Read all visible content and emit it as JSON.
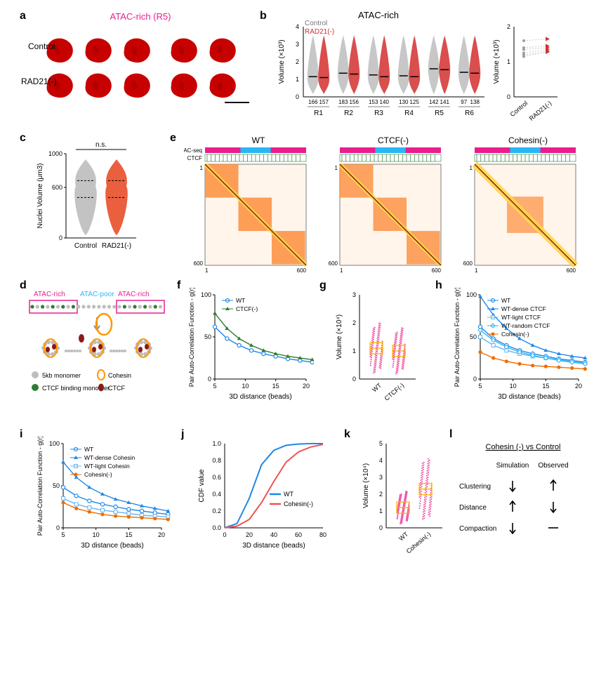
{
  "panels": {
    "a": {
      "label": "a",
      "title": "ATAC-rich (R5)",
      "title_color": "#e91e8c",
      "rows": [
        "Control",
        "RAD21(-)"
      ],
      "blob_color": "#c70000",
      "blob_count": 5,
      "bg": "#ffffff",
      "title_fontsize": 13,
      "row_label_fontsize": 12
    },
    "b": {
      "label": "b",
      "title": "ATAC-rich",
      "title_fontsize": 13,
      "legend": [
        {
          "text": "Control",
          "color": "#9e9e9e"
        },
        {
          "text": "RAD21(-)",
          "color": "#d32f2f"
        }
      ],
      "ylabel": "Volume (×10³)",
      "ylim": [
        0,
        4
      ],
      "ytick_step": 1,
      "categories": [
        "R1",
        "R2",
        "R3",
        "R4",
        "R5",
        "R6"
      ],
      "counts": [
        [
          "166",
          "157"
        ],
        [
          "183",
          "156"
        ],
        [
          "153",
          "140"
        ],
        [
          "130",
          "125"
        ],
        [
          "142",
          "141"
        ],
        [
          "97",
          "138"
        ]
      ],
      "violin_pairs": [
        [
          1.15,
          1.1
        ],
        [
          1.35,
          1.3
        ],
        [
          1.25,
          1.15
        ],
        [
          1.2,
          1.15
        ],
        [
          1.6,
          1.55
        ],
        [
          1.4,
          1.35
        ]
      ],
      "right": {
        "ylabel": "Volume (×10³)",
        "ylim": [
          0,
          2
        ],
        "ytick_step": 1,
        "xlabels": [
          "Control",
          "RAD21(-)"
        ],
        "lines": [
          [
            1.15,
            1.3
          ],
          [
            1.35,
            1.4
          ],
          [
            1.25,
            1.35
          ],
          [
            1.2,
            1.28
          ],
          [
            1.6,
            1.65
          ],
          [
            1.4,
            1.45
          ]
        ],
        "marker_colors": [
          "#9e9e9e",
          "#d32f2f"
        ]
      },
      "label_fontsize": 11,
      "violin_grey": "#bdbdbd",
      "violin_red": "#d32f2f",
      "bg": "#ffffff"
    },
    "c": {
      "label": "c",
      "ylabel": "Nuclei Volume (μm3)",
      "ylim": [
        0,
        1000
      ],
      "yticks": [
        0,
        600,
        1000
      ],
      "xlabels": [
        "Control",
        "RAD21(-)"
      ],
      "ns": "n.s.",
      "violin_grey": "#bdbdbd",
      "violin_red": "#e84f29",
      "bg": "#ffffff",
      "label_fontsize": 11
    },
    "d": {
      "label": "d",
      "header_labels": [
        "ATAC-rich",
        "ATAC-poor",
        "ATAC-rich"
      ],
      "header_colors": [
        "#e91e8c",
        "#29b6f6",
        "#e91e8c"
      ],
      "border_color": "#e91e8c",
      "legend": [
        {
          "label": "5kb monomer",
          "color": "#bdbdbd",
          "shape": "circle"
        },
        {
          "label": "CTCF binding monomer",
          "color": "#2e7d32",
          "shape": "circle"
        },
        {
          "label": "Cohesin",
          "color": "#ff9800",
          "shape": "ring"
        },
        {
          "label": "CTCF",
          "color": "#8b1a1a",
          "shape": "oval"
        }
      ],
      "label_fontsize": 11
    },
    "e": {
      "label": "e",
      "titles": [
        "WT",
        "CTCF(-)",
        "Cohesin(-)"
      ],
      "track_labels": [
        "ATAC-seq",
        "CTCF"
      ],
      "atac_color": "#e91e8c",
      "atac_mid_color": "#29b6f6",
      "ctcf_tick_color": "#2e7d32",
      "axis": [
        1,
        600
      ],
      "heatmap_colors": {
        "low": "#fff5eb",
        "mid": "#fd8d3c",
        "high": "#7f2704",
        "diag": "#ffd54f"
      },
      "label_fontsize": 11
    },
    "f": {
      "label": "f",
      "type": "line",
      "series": [
        {
          "name": "WT",
          "color": "#1e88e5",
          "marker": "circle"
        },
        {
          "name": "CTCF(-)",
          "color": "#2e7d32",
          "marker": "triangle"
        }
      ],
      "xlabel": "3D distance (beads)",
      "ylabel": "Pair Auto-Correlation Function - g(r)",
      "xlim": [
        5,
        20
      ],
      "xtick_step": 5,
      "ylim": [
        0,
        100
      ],
      "ytick_step": 50,
      "data": {
        "x": [
          5,
          7,
          9,
          11,
          13,
          15,
          17,
          19,
          21
        ],
        "WT": [
          62,
          48,
          40,
          34,
          30,
          27,
          24,
          22,
          20
        ],
        "CTCF(-)": [
          78,
          60,
          48,
          40,
          34,
          30,
          27,
          25,
          23
        ]
      },
      "label_fontsize": 11,
      "bg": "#ffffff"
    },
    "g": {
      "label": "g",
      "type": "scatter",
      "ylabel": "Volume (×10⁴)",
      "ylim": [
        0,
        3
      ],
      "ytick_step": 1,
      "xlabels": [
        "WT",
        "CTCF(-)"
      ],
      "point_color": "#e91e8c",
      "box_color": "#ffb300",
      "median": [
        1.1,
        1.0
      ],
      "label_fontsize": 11
    },
    "h": {
      "label": "h",
      "type": "line",
      "series": [
        {
          "name": "WT",
          "color": "#1e88e5",
          "marker": "open-circle"
        },
        {
          "name": "WT-dense CTCF",
          "color": "#1e88e5",
          "marker": "triangle"
        },
        {
          "name": "WT-light CTCF",
          "color": "#64b5f6",
          "marker": "square"
        },
        {
          "name": "WT-random CTCF",
          "color": "#29b6f6",
          "marker": "diamond"
        },
        {
          "name": "Cohesin(-)",
          "color": "#ef6c00",
          "marker": "filled-circle"
        }
      ],
      "xlabel": "3D distance (beads)",
      "ylabel": "Pair Auto-Correlation Function - g(r)",
      "xlim": [
        5,
        20
      ],
      "xtick_step": 5,
      "ylim": [
        0,
        100
      ],
      "ytick_step": 50,
      "data": {
        "x": [
          5,
          7,
          9,
          11,
          13,
          15,
          17,
          19,
          21
        ],
        "WT": [
          62,
          48,
          40,
          34,
          30,
          27,
          24,
          22,
          20
        ],
        "WT-dense CTCF": [
          98,
          76,
          60,
          48,
          40,
          34,
          30,
          27,
          25
        ],
        "WT-light CTCF": [
          50,
          40,
          34,
          30,
          27,
          25,
          23,
          21,
          19
        ],
        "WT-random CTCF": [
          58,
          46,
          38,
          32,
          28,
          25,
          22,
          20,
          18
        ],
        "Cohesin(-)": [
          32,
          25,
          21,
          18,
          16,
          15,
          14,
          13,
          12
        ]
      },
      "label_fontsize": 11,
      "bg": "#ffffff"
    },
    "i": {
      "label": "i",
      "type": "line",
      "series": [
        {
          "name": "WT",
          "color": "#1e88e5",
          "marker": "open-circle"
        },
        {
          "name": "WT-dense Cohesin",
          "color": "#1e88e5",
          "marker": "triangle"
        },
        {
          "name": "WT-light Cohesin",
          "color": "#64b5f6",
          "marker": "square"
        },
        {
          "name": "Cohesin(-)",
          "color": "#ef6c00",
          "marker": "filled-circle"
        }
      ],
      "xlabel": "3D distance (beads)",
      "ylabel": "Pair Auto-Correlation Function - g(r)",
      "xlim": [
        5,
        20
      ],
      "xtick_step": 5,
      "ylim": [
        0,
        100
      ],
      "ytick_step": 50,
      "data": {
        "x": [
          5,
          7,
          9,
          11,
          13,
          15,
          17,
          19,
          21
        ],
        "WT": [
          48,
          38,
          32,
          28,
          25,
          22,
          20,
          18,
          16
        ],
        "WT-dense Cohesin": [
          78,
          60,
          48,
          40,
          34,
          30,
          26,
          23,
          20
        ],
        "WT-light Cohesin": [
          35,
          28,
          24,
          21,
          19,
          17,
          15,
          14,
          13
        ],
        "Cohesin(-)": [
          30,
          23,
          19,
          16,
          14,
          13,
          12,
          11,
          10
        ]
      },
      "label_fontsize": 11,
      "bg": "#ffffff"
    },
    "j": {
      "label": "j",
      "type": "line",
      "series": [
        {
          "name": "WT",
          "color": "#1e88e5"
        },
        {
          "name": "Cohesin(-)",
          "color": "#ef5350"
        }
      ],
      "xlabel": "3D distance (beads)",
      "ylabel": "CDF value",
      "xlim": [
        0,
        80
      ],
      "xtick_step": 20,
      "ylim": [
        0,
        1
      ],
      "ytick_step": 0.2,
      "data": {
        "x": [
          0,
          10,
          20,
          30,
          40,
          50,
          60,
          70,
          80
        ],
        "WT": [
          0,
          0.05,
          0.35,
          0.75,
          0.92,
          0.98,
          0.995,
          1,
          1
        ],
        "Cohesin(-)": [
          0,
          0.02,
          0.1,
          0.3,
          0.55,
          0.78,
          0.9,
          0.96,
          0.99
        ]
      },
      "label_fontsize": 11,
      "bg": "#ffffff"
    },
    "k": {
      "label": "k",
      "type": "scatter",
      "ylabel": "Volume (×10⁴)",
      "ylim": [
        0,
        5
      ],
      "ytick_step": 1,
      "xlabels": [
        "WT",
        "Cohesin(-)"
      ],
      "point_color": "#e91e8c",
      "box_color": "#ffb300",
      "median": [
        1.2,
        2.3
      ],
      "label_fontsize": 11
    },
    "l": {
      "label": "l",
      "title": "Cohesin (-) vs Control",
      "cols": [
        "Simulation",
        "Observed"
      ],
      "rows": [
        [
          "Clustering",
          "down",
          "up"
        ],
        [
          "Distance",
          "up",
          "down"
        ],
        [
          "Compaction",
          "down",
          "dash"
        ]
      ],
      "label_fontsize": 11,
      "arrow_color": "#000000"
    }
  }
}
